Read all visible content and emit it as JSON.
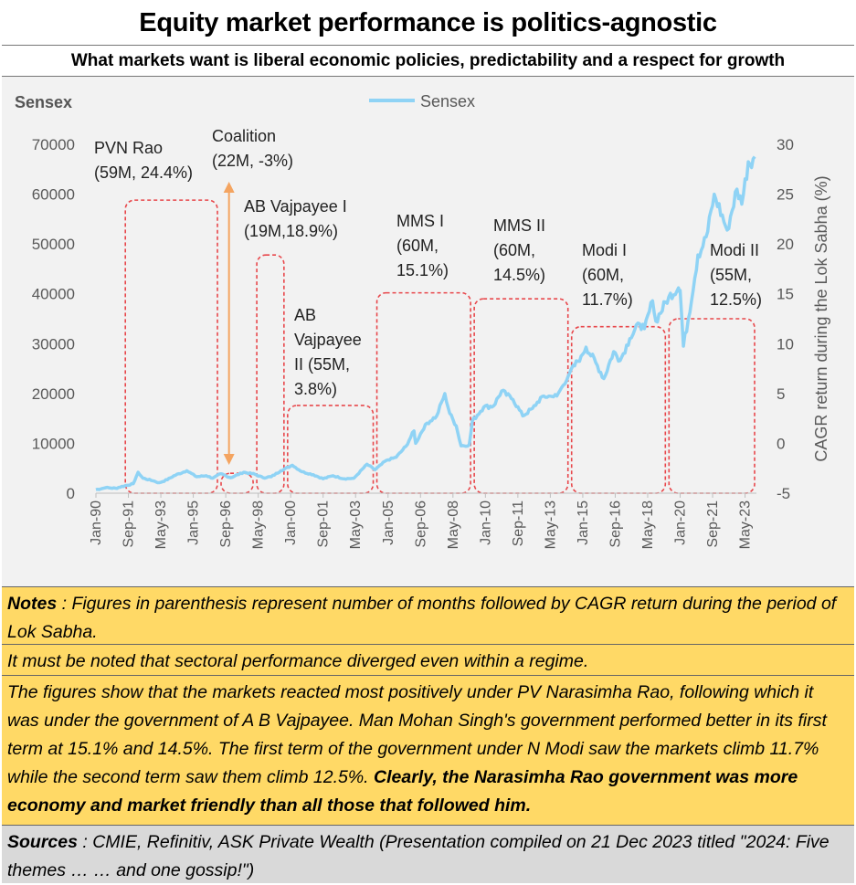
{
  "title": "Equity market performance is politics-agnostic",
  "subtitle": "What markets want is liberal economic policies, predictability and a respect for growth",
  "notes": {
    "n1_label": "Notes",
    "n1_text": " : Figures in parenthesis represent number of months followed by CAGR return during the period of Lok Sabha.",
    "n2_text": "It must be noted that sectoral performance diverged even within a regime.",
    "n3_text": "The figures show that the markets reacted most positively under PV Narasimha Rao, following which it was under the government of A B Vajpayee.  Man Mohan Singh's government performed better in its first term at 15.1% and 14.5%. The first term of the government under N Modi saw the markets climb 11.7% while the second term saw them climb 12.5%.  ",
    "n3_bold": "Clearly, the Narasimha Rao government was more economy and market friendly than all those that followed him.",
    "n4_label": "Sources",
    "n4_text": " : CMIE, Refinitiv, ASK Private Wealth (Presentation compiled on 21 Dec 2023 titled \"2024: Five themes … … and one gossip!\")"
  },
  "chart_data": {
    "type": "line",
    "title": "Equity market performance is politics-agnostic",
    "ylabel": "Sensex",
    "y2label": "CAGR return during the Lok Sabha (%)",
    "ylim": [
      0,
      70000
    ],
    "y_ticks": [
      "0",
      "10000",
      "20000",
      "30000",
      "40000",
      "50000",
      "60000",
      "70000"
    ],
    "y2lim": [
      -5,
      30
    ],
    "y2_ticks": [
      "-5",
      "0",
      "5",
      "10",
      "15",
      "20",
      "25",
      "30"
    ],
    "x_tick_labels": [
      "Jan-90",
      "Sep-91",
      "May-93",
      "Jan-95",
      "Sep-96",
      "May-98",
      "Jan-00",
      "Sep-01",
      "May-03",
      "Jan-05",
      "Sep-06",
      "May-08",
      "Jan-10",
      "Sep-11",
      "May-13",
      "Jan-15",
      "Sep-16",
      "May-18",
      "Jan-20",
      "Sep-21",
      "May-23"
    ],
    "legend": [
      "Sensex"
    ],
    "legend_position": "top-center",
    "series": [
      {
        "name": "Sensex",
        "color": "#8fd3f5",
        "points": [
          [
            "1990-01",
            700
          ],
          [
            "1990-07",
            1100
          ],
          [
            "1991-01",
            1000
          ],
          [
            "1991-07",
            1500
          ],
          [
            "1991-12",
            1900
          ],
          [
            "1992-03",
            4200
          ],
          [
            "1992-06",
            3000
          ],
          [
            "1992-12",
            2500
          ],
          [
            "1993-04",
            2100
          ],
          [
            "1993-09",
            2700
          ],
          [
            "1994-01",
            3500
          ],
          [
            "1994-09",
            4500
          ],
          [
            "1995-03",
            3300
          ],
          [
            "1995-09",
            3500
          ],
          [
            "1996-01",
            3000
          ],
          [
            "1996-06",
            3900
          ],
          [
            "1996-12",
            3100
          ],
          [
            "1997-08",
            4200
          ],
          [
            "1998-03",
            3800
          ],
          [
            "1998-08",
            3100
          ],
          [
            "1999-01",
            3300
          ],
          [
            "1999-07",
            4500
          ],
          [
            "2000-02",
            5600
          ],
          [
            "2000-08",
            4300
          ],
          [
            "2001-03",
            3700
          ],
          [
            "2001-09",
            2900
          ],
          [
            "2002-03",
            3500
          ],
          [
            "2002-10",
            2900
          ],
          [
            "2003-04",
            3000
          ],
          [
            "2003-12",
            5800
          ],
          [
            "2004-05",
            4700
          ],
          [
            "2004-12",
            6600
          ],
          [
            "2005-06",
            7200
          ],
          [
            "2005-12",
            9400
          ],
          [
            "2006-05",
            12500
          ],
          [
            "2006-06",
            10000
          ],
          [
            "2006-12",
            13800
          ],
          [
            "2007-07",
            15500
          ],
          [
            "2007-12",
            20000
          ],
          [
            "2008-03",
            16000
          ],
          [
            "2008-07",
            13500
          ],
          [
            "2008-10",
            9500
          ],
          [
            "2009-03",
            9700
          ],
          [
            "2009-05",
            14500
          ],
          [
            "2009-12",
            17300
          ],
          [
            "2010-06",
            17500
          ],
          [
            "2010-11",
            20500
          ],
          [
            "2011-06",
            18800
          ],
          [
            "2011-12",
            15500
          ],
          [
            "2012-06",
            17000
          ],
          [
            "2012-12",
            19400
          ],
          [
            "2013-06",
            19400
          ],
          [
            "2013-09",
            19500
          ],
          [
            "2013-12",
            21200
          ],
          [
            "2014-05",
            24200
          ],
          [
            "2014-12",
            27500
          ],
          [
            "2015-03",
            29300
          ],
          [
            "2015-09",
            26200
          ],
          [
            "2016-02",
            23000
          ],
          [
            "2016-08",
            28400
          ],
          [
            "2016-12",
            26600
          ],
          [
            "2017-06",
            31000
          ],
          [
            "2017-12",
            34000
          ],
          [
            "2018-03",
            33000
          ],
          [
            "2018-08",
            38600
          ],
          [
            "2018-10",
            34500
          ],
          [
            "2019-06",
            39400
          ],
          [
            "2019-12",
            41200
          ],
          [
            "2020-01",
            40700
          ],
          [
            "2020-03",
            29500
          ],
          [
            "2020-06",
            34900
          ],
          [
            "2020-12",
            47800
          ],
          [
            "2021-03",
            49500
          ],
          [
            "2021-06",
            52500
          ],
          [
            "2021-10",
            60000
          ],
          [
            "2022-06",
            52800
          ],
          [
            "2022-12",
            61000
          ],
          [
            "2023-03",
            58000
          ],
          [
            "2023-07",
            66500
          ],
          [
            "2023-11",
            67500
          ]
        ]
      }
    ],
    "regimes": [
      {
        "label_lines": [
          "PVN Rao",
          "(59M, 24.4%)"
        ],
        "months": "59M",
        "cagr": 24.4,
        "start": "1991-06",
        "end": "1996-05"
      },
      {
        "label_lines": [
          "Coalition",
          "(22M, -3%)"
        ],
        "months": "22M",
        "cagr": -3,
        "start": "1996-05",
        "end": "1998-03"
      },
      {
        "label_lines": [
          "AB Vajpayee I",
          "(19M,18.9%)"
        ],
        "months": "19M",
        "cagr": 18.9,
        "start": "1998-03",
        "end": "1999-10"
      },
      {
        "label_lines": [
          "AB",
          "Vajpayee",
          "II (55M,",
          "3.8%)"
        ],
        "months": "55M",
        "cagr": 3.8,
        "start": "1999-10",
        "end": "2004-05"
      },
      {
        "label_lines": [
          "MMS I",
          "(60M,",
          "15.1%)"
        ],
        "months": "60M",
        "cagr": 15.1,
        "start": "2004-05",
        "end": "2009-05"
      },
      {
        "label_lines": [
          "MMS II",
          "(60M,",
          "14.5%)"
        ],
        "months": "60M",
        "cagr": 14.5,
        "start": "2009-05",
        "end": "2014-05"
      },
      {
        "label_lines": [
          "Modi I",
          "(60M,",
          "11.7%)"
        ],
        "months": "60M",
        "cagr": 11.7,
        "start": "2014-05",
        "end": "2019-05"
      },
      {
        "label_lines": [
          "Modi II",
          "(55M,",
          "12.5%)"
        ],
        "months": "55M",
        "cagr": 12.5,
        "start": "2019-05",
        "end": "2023-12"
      }
    ],
    "colors": {
      "line": "#8fd3f5",
      "regime_box": "#e8474b",
      "arrow": "#f4a460",
      "plot_bg": "#f2f2f2"
    }
  }
}
